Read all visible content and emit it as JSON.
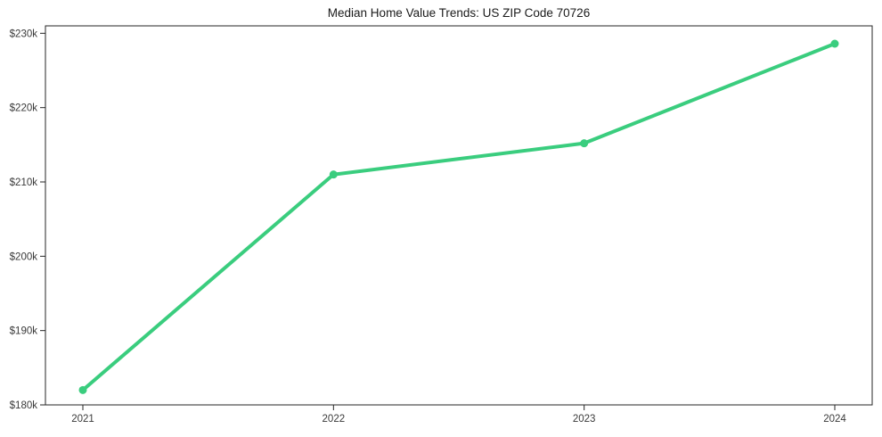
{
  "chart_data": {
    "type": "line",
    "title": "Median Home Value Trends: US ZIP Code 70726",
    "categories": [
      "2021",
      "2022",
      "2023",
      "2024"
    ],
    "series": [
      {
        "name": "Median Home Value",
        "values": [
          182000,
          211000,
          215200,
          228600
        ]
      }
    ],
    "xlabel": "",
    "ylabel": "",
    "ylim": [
      180000,
      231000
    ],
    "y_ticks": [
      180000,
      190000,
      200000,
      210000,
      220000,
      230000
    ],
    "y_tick_labels": [
      "$180k",
      "$190k",
      "$200k",
      "$210k",
      "$220k",
      "$230k"
    ],
    "grid": false,
    "legend_position": "none",
    "line_color": "#3acd7e",
    "marker_shape": "circle",
    "axis_color": "#262626",
    "tick_label_color": "#3a3a3a",
    "background_color": "#ffffff"
  }
}
